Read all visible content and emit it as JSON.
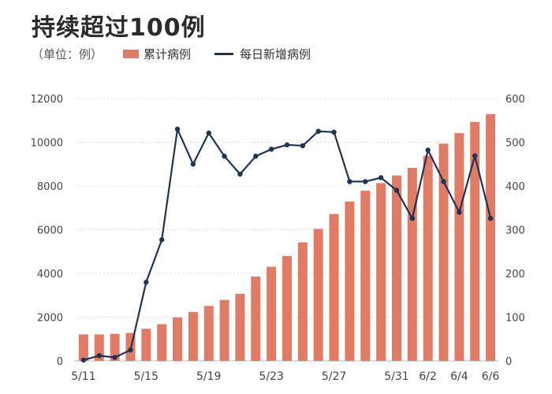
{
  "title": {
    "line1": "",
    "line2": "持续超过100例"
  },
  "legend": {
    "unit": "（单位：例）",
    "bar_label": "累计病例",
    "line_label": "每日新增病例"
  },
  "colors": {
    "bar": "#E07B66",
    "line": "#1F3354",
    "grid": "#d9d9d9",
    "axis_text": "#444444"
  },
  "chart_data": {
    "type": "bar+line",
    "title": "持续超过100例",
    "unit": "（单位：例）",
    "left_axis": {
      "min": 0,
      "max": 12000,
      "ticks": [
        "0",
        "2000",
        "4000",
        "6000",
        "8000",
        "10000",
        "12000"
      ]
    },
    "right_axis": {
      "min": 0,
      "max": 600,
      "ticks": [
        "0",
        "100",
        "200",
        "300",
        "400",
        "500",
        "600"
      ]
    },
    "x_tick_labels": [
      "5/11",
      "5/15",
      "5/19",
      "5/23",
      "5/27",
      "5/31",
      "6/2",
      "6/4",
      "6/6"
    ],
    "x_tick_indices": [
      0,
      4,
      8,
      12,
      16,
      20,
      22,
      24,
      26
    ],
    "categories": [
      "5/11",
      "5/12",
      "5/13",
      "5/14",
      "5/15",
      "5/16",
      "5/17",
      "5/18",
      "5/19",
      "5/20",
      "5/21",
      "5/22",
      "5/23",
      "5/24",
      "5/25",
      "5/26",
      "5/27",
      "5/28",
      "5/29",
      "5/30",
      "5/31",
      "6/1",
      "6/2",
      "6/3",
      "6/4",
      "6/5",
      "6/6"
    ],
    "series": [
      {
        "name": "累计病例",
        "type": "bar",
        "axis": "left",
        "values": [
          1210,
          1210,
          1240,
          1280,
          1470,
          1680,
          1990,
          2240,
          2510,
          2790,
          3070,
          3860,
          4300,
          4800,
          5420,
          6040,
          6720,
          7290,
          7780,
          8130,
          8480,
          8830,
          9380,
          9930,
          10420,
          10930,
          11290
        ]
      },
      {
        "name": "每日新增病例",
        "type": "line",
        "axis": "right",
        "values": [
          2,
          12,
          8,
          25,
          180,
          277,
          530,
          450,
          521,
          468,
          427,
          468,
          484,
          494,
          492,
          525,
          523,
          410,
          410,
          419,
          390,
          326,
          482,
          410,
          340,
          469,
          326
        ]
      }
    ],
    "grid": true,
    "legend_position": "top-left"
  }
}
